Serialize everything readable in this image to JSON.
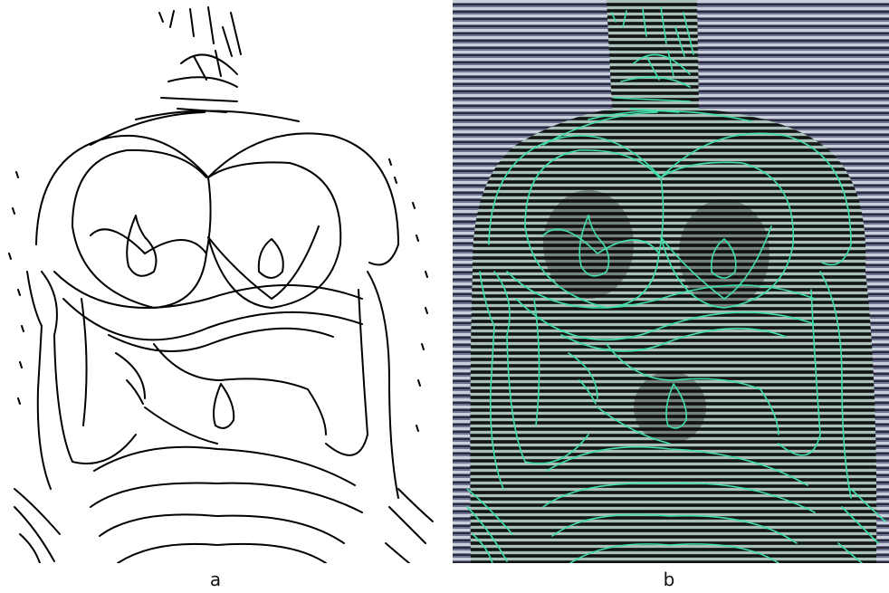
{
  "panels": [
    {
      "label": "a",
      "description_colors": {
        "background": "#ffffff",
        "contour": "#000000"
      }
    },
    {
      "label": "b",
      "description_colors": {
        "stripe_light": "#c9d3dc",
        "stripe_dark": "#1e2024",
        "background_tint": "#6e6f95",
        "contour": "#3fe0a8"
      }
    }
  ],
  "colors": {
    "contour_a": "#000000",
    "contour_b": "#3fe0a8",
    "stripe_bg": "#7a7ba2"
  }
}
